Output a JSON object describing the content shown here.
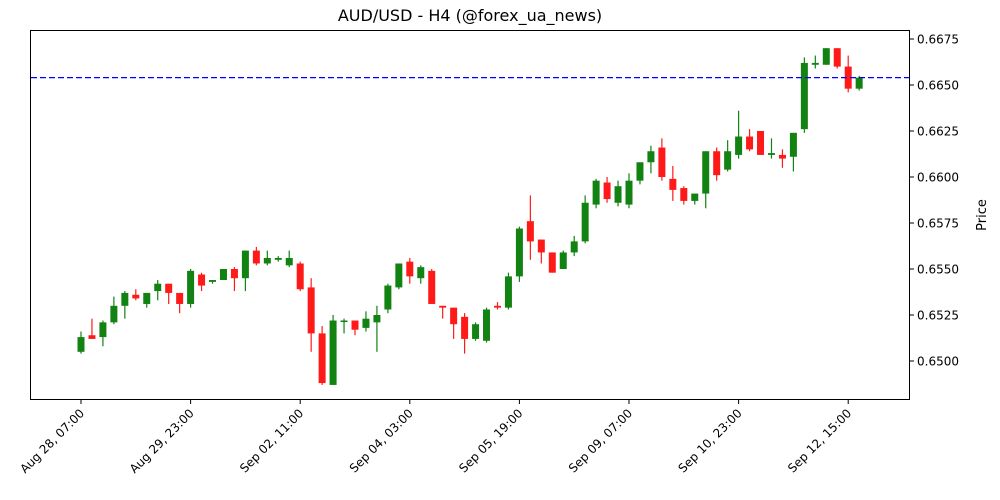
{
  "chart_data": {
    "type": "candlestick",
    "title": "AUD/USD - H4 (@forex_ua_news)",
    "xlabel": "",
    "ylabel": "Price",
    "ylim": [
      0.6485,
      0.668
    ],
    "grid": false,
    "legend": null,
    "colors": {
      "up": "#128212",
      "down": "#ff1a1a",
      "reference_line": "#0000ff"
    },
    "reference_line": {
      "value": 0.6654,
      "style": "dashed",
      "color": "#0000ff"
    },
    "yticks": [
      "0.6500",
      "0.6525",
      "0.6550",
      "0.6575",
      "0.6600",
      "0.6625",
      "0.6650",
      "0.6675"
    ],
    "ytick_values": [
      0.65,
      0.6525,
      0.655,
      0.6575,
      0.66,
      0.6625,
      0.665,
      0.6675
    ],
    "xticks": [
      {
        "index": 0,
        "label": "Aug 28, 07:00"
      },
      {
        "index": 10,
        "label": "Aug 29, 23:00"
      },
      {
        "index": 20,
        "label": "Sep 02, 11:00"
      },
      {
        "index": 30,
        "label": "Sep 04, 03:00"
      },
      {
        "index": 40,
        "label": "Sep 05, 19:00"
      },
      {
        "index": 50,
        "label": "Sep 09, 07:00"
      },
      {
        "index": 60,
        "label": "Sep 10, 23:00"
      },
      {
        "index": 70,
        "label": "Sep 12, 15:00"
      }
    ],
    "candles": [
      {
        "o": 0.6505,
        "h": 0.6516,
        "l": 0.6504,
        "c": 0.6513
      },
      {
        "o": 0.6514,
        "h": 0.6523,
        "l": 0.6512,
        "c": 0.6512
      },
      {
        "o": 0.6513,
        "h": 0.6522,
        "l": 0.6508,
        "c": 0.6521
      },
      {
        "o": 0.6521,
        "h": 0.6535,
        "l": 0.652,
        "c": 0.653
      },
      {
        "o": 0.653,
        "h": 0.6538,
        "l": 0.6523,
        "c": 0.6537
      },
      {
        "o": 0.6536,
        "h": 0.6539,
        "l": 0.6533,
        "c": 0.6534
      },
      {
        "o": 0.6531,
        "h": 0.6537,
        "l": 0.6529,
        "c": 0.6537
      },
      {
        "o": 0.6538,
        "h": 0.6544,
        "l": 0.6533,
        "c": 0.6542
      },
      {
        "o": 0.6542,
        "h": 0.6542,
        "l": 0.6531,
        "c": 0.6537
      },
      {
        "o": 0.6537,
        "h": 0.6537,
        "l": 0.6526,
        "c": 0.6531
      },
      {
        "o": 0.6531,
        "h": 0.655,
        "l": 0.6529,
        "c": 0.6549
      },
      {
        "o": 0.6547,
        "h": 0.6548,
        "l": 0.6538,
        "c": 0.6541
      },
      {
        "o": 0.6543,
        "h": 0.6544,
        "l": 0.6542,
        "c": 0.6544
      },
      {
        "o": 0.6544,
        "h": 0.655,
        "l": 0.6544,
        "c": 0.655
      },
      {
        "o": 0.655,
        "h": 0.6551,
        "l": 0.6538,
        "c": 0.6545
      },
      {
        "o": 0.6545,
        "h": 0.656,
        "l": 0.6538,
        "c": 0.656
      },
      {
        "o": 0.656,
        "h": 0.6562,
        "l": 0.6552,
        "c": 0.6553
      },
      {
        "o": 0.6553,
        "h": 0.656,
        "l": 0.6552,
        "c": 0.6556
      },
      {
        "o": 0.6555,
        "h": 0.6557,
        "l": 0.6554,
        "c": 0.6556
      },
      {
        "o": 0.6552,
        "h": 0.656,
        "l": 0.6551,
        "c": 0.6556
      },
      {
        "o": 0.6553,
        "h": 0.6554,
        "l": 0.6538,
        "c": 0.6539
      },
      {
        "o": 0.654,
        "h": 0.6545,
        "l": 0.6505,
        "c": 0.6515
      },
      {
        "o": 0.6515,
        "h": 0.6519,
        "l": 0.6487,
        "c": 0.6488
      },
      {
        "o": 0.6487,
        "h": 0.6525,
        "l": 0.6487,
        "c": 0.6522
      },
      {
        "o": 0.6522,
        "h": 0.6523,
        "l": 0.6515,
        "c": 0.6522
      },
      {
        "o": 0.6522,
        "h": 0.6522,
        "l": 0.6514,
        "c": 0.6517
      },
      {
        "o": 0.6518,
        "h": 0.6527,
        "l": 0.6516,
        "c": 0.6523
      },
      {
        "o": 0.6521,
        "h": 0.653,
        "l": 0.6505,
        "c": 0.6525
      },
      {
        "o": 0.6528,
        "h": 0.6542,
        "l": 0.6526,
        "c": 0.6541
      },
      {
        "o": 0.654,
        "h": 0.6553,
        "l": 0.6539,
        "c": 0.6553
      },
      {
        "o": 0.6554,
        "h": 0.6556,
        "l": 0.6542,
        "c": 0.6546
      },
      {
        "o": 0.6545,
        "h": 0.6552,
        "l": 0.6542,
        "c": 0.6551
      },
      {
        "o": 0.6549,
        "h": 0.655,
        "l": 0.6531,
        "c": 0.6531
      },
      {
        "o": 0.653,
        "h": 0.653,
        "l": 0.6523,
        "c": 0.6529
      },
      {
        "o": 0.6529,
        "h": 0.6529,
        "l": 0.6512,
        "c": 0.652
      },
      {
        "o": 0.6524,
        "h": 0.6526,
        "l": 0.6504,
        "c": 0.6512
      },
      {
        "o": 0.6512,
        "h": 0.6521,
        "l": 0.6511,
        "c": 0.652
      },
      {
        "o": 0.6511,
        "h": 0.6529,
        "l": 0.651,
        "c": 0.6528
      },
      {
        "o": 0.653,
        "h": 0.6532,
        "l": 0.6528,
        "c": 0.6529
      },
      {
        "o": 0.6529,
        "h": 0.6548,
        "l": 0.6528,
        "c": 0.6546
      },
      {
        "o": 0.6546,
        "h": 0.6573,
        "l": 0.6543,
        "c": 0.6572
      },
      {
        "o": 0.6576,
        "h": 0.659,
        "l": 0.6555,
        "c": 0.6565
      },
      {
        "o": 0.6566,
        "h": 0.6566,
        "l": 0.6553,
        "c": 0.6559
      },
      {
        "o": 0.6559,
        "h": 0.6559,
        "l": 0.6548,
        "c": 0.6548
      },
      {
        "o": 0.655,
        "h": 0.656,
        "l": 0.655,
        "c": 0.6559
      },
      {
        "o": 0.6559,
        "h": 0.6568,
        "l": 0.6557,
        "c": 0.6565
      },
      {
        "o": 0.6565,
        "h": 0.659,
        "l": 0.6564,
        "c": 0.6586
      },
      {
        "o": 0.6585,
        "h": 0.6599,
        "l": 0.6583,
        "c": 0.6598
      },
      {
        "o": 0.6597,
        "h": 0.66,
        "l": 0.6586,
        "c": 0.6588
      },
      {
        "o": 0.6586,
        "h": 0.6598,
        "l": 0.6584,
        "c": 0.6595
      },
      {
        "o": 0.6585,
        "h": 0.6602,
        "l": 0.6583,
        "c": 0.6598
      },
      {
        "o": 0.6598,
        "h": 0.6608,
        "l": 0.6596,
        "c": 0.6608
      },
      {
        "o": 0.6608,
        "h": 0.6617,
        "l": 0.6602,
        "c": 0.6614
      },
      {
        "o": 0.6616,
        "h": 0.6621,
        "l": 0.6598,
        "c": 0.66
      },
      {
        "o": 0.6599,
        "h": 0.6606,
        "l": 0.6587,
        "c": 0.6593
      },
      {
        "o": 0.6594,
        "h": 0.6595,
        "l": 0.6585,
        "c": 0.6587
      },
      {
        "o": 0.6587,
        "h": 0.659,
        "l": 0.6585,
        "c": 0.6591
      },
      {
        "o": 0.6591,
        "h": 0.6614,
        "l": 0.6583,
        "c": 0.6614
      },
      {
        "o": 0.6614,
        "h": 0.6616,
        "l": 0.6598,
        "c": 0.6601
      },
      {
        "o": 0.6604,
        "h": 0.662,
        "l": 0.6603,
        "c": 0.6614
      },
      {
        "o": 0.6612,
        "h": 0.6636,
        "l": 0.661,
        "c": 0.6622
      },
      {
        "o": 0.6622,
        "h": 0.6626,
        "l": 0.6614,
        "c": 0.6615
      },
      {
        "o": 0.6625,
        "h": 0.6625,
        "l": 0.6612,
        "c": 0.6612
      },
      {
        "o": 0.6612,
        "h": 0.6621,
        "l": 0.661,
        "c": 0.6613
      },
      {
        "o": 0.6612,
        "h": 0.6615,
        "l": 0.6605,
        "c": 0.661
      },
      {
        "o": 0.6611,
        "h": 0.6624,
        "l": 0.6603,
        "c": 0.6624
      },
      {
        "o": 0.6626,
        "h": 0.6665,
        "l": 0.6624,
        "c": 0.6662
      },
      {
        "o": 0.6661,
        "h": 0.6666,
        "l": 0.6659,
        "c": 0.6662
      },
      {
        "o": 0.6661,
        "h": 0.667,
        "l": 0.6661,
        "c": 0.667
      },
      {
        "o": 0.667,
        "h": 0.667,
        "l": 0.6659,
        "c": 0.666
      },
      {
        "o": 0.666,
        "h": 0.6666,
        "l": 0.6646,
        "c": 0.6648
      },
      {
        "o": 0.6648,
        "h": 0.6655,
        "l": 0.6647,
        "c": 0.6654
      }
    ]
  }
}
